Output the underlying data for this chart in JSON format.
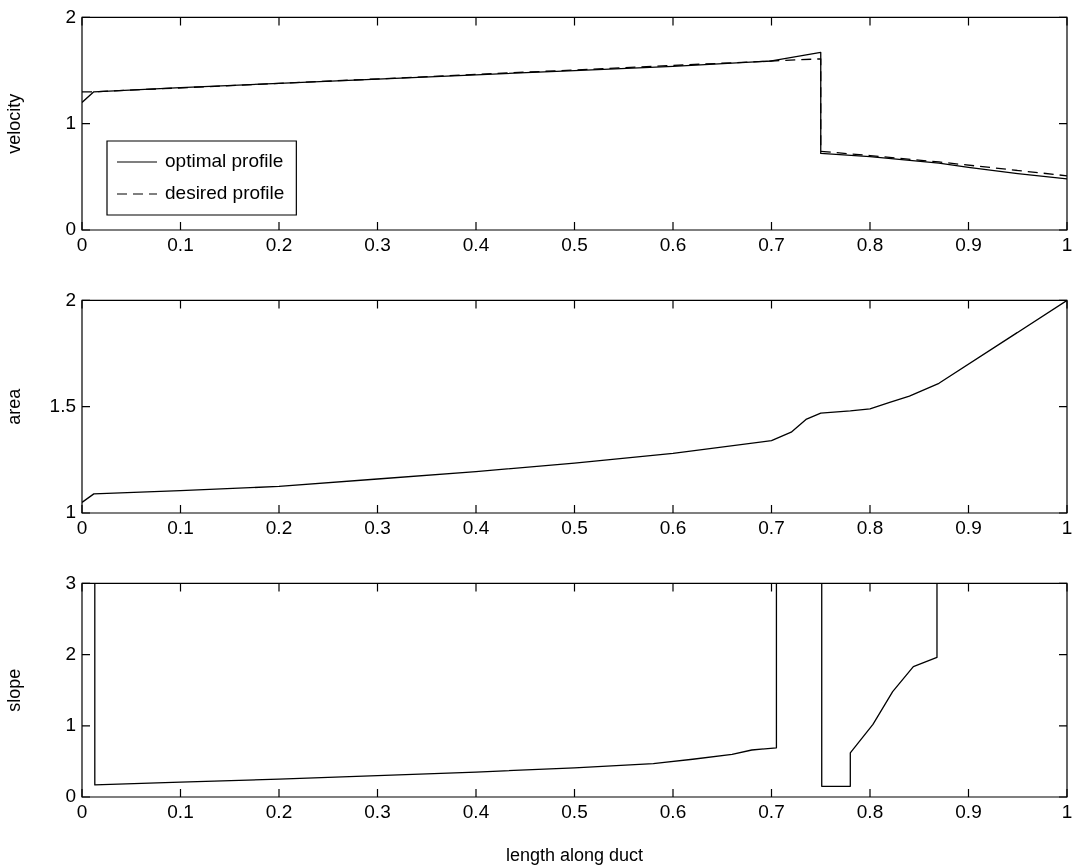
{
  "chart_data": [
    {
      "type": "line",
      "ylabel": "velocity",
      "xlim": [
        0,
        1
      ],
      "xticks": [
        0,
        0.1,
        0.2,
        0.3,
        0.4,
        0.5,
        0.6,
        0.7,
        0.8,
        0.9,
        1
      ],
      "ylim": [
        0,
        2
      ],
      "yticks": [
        0,
        1,
        2
      ],
      "grid": false,
      "legend": "bottom left",
      "marker": "none",
      "series": [
        {
          "name": "optimal profile",
          "color": "#000000",
          "line_style": "solid",
          "x": [
            0,
            0.012,
            0.1,
            0.2,
            0.3,
            0.4,
            0.5,
            0.6,
            0.7,
            0.75,
            0.75,
            0.8,
            0.87,
            0.9,
            0.95,
            1
          ],
          "values": [
            1.2,
            1.3,
            1.34,
            1.38,
            1.42,
            1.46,
            1.5,
            1.54,
            1.59,
            1.67,
            0.72,
            0.69,
            0.63,
            0.59,
            0.53,
            0.48
          ]
        },
        {
          "name": "desired profile",
          "color": "#000000",
          "line_style": "dashed",
          "x": [
            0,
            0.012,
            0.7,
            0.75,
            0.75,
            0.8,
            0.87,
            1
          ],
          "values": [
            1.3,
            1.3,
            1.59,
            1.61,
            0.74,
            0.7,
            0.64,
            0.51
          ]
        }
      ]
    },
    {
      "type": "line",
      "ylabel": "area",
      "xlim": [
        0,
        1
      ],
      "xticks": [
        0,
        0.1,
        0.2,
        0.3,
        0.4,
        0.5,
        0.6,
        0.7,
        0.8,
        0.9,
        1
      ],
      "ylim": [
        1,
        2
      ],
      "yticks": [
        1,
        1.5,
        2
      ],
      "grid": false,
      "marker": "none",
      "series": [
        {
          "color": "#000000",
          "line_style": "solid",
          "x": [
            0,
            0.012,
            0.1,
            0.2,
            0.3,
            0.4,
            0.5,
            0.6,
            0.7,
            0.72,
            0.735,
            0.75,
            0.78,
            0.8,
            0.82,
            0.84,
            0.87,
            1
          ],
          "values": [
            1.05,
            1.09,
            1.105,
            1.125,
            1.16,
            1.195,
            1.235,
            1.28,
            1.34,
            1.38,
            1.44,
            1.47,
            1.48,
            1.49,
            1.52,
            1.55,
            1.61,
            2
          ]
        }
      ]
    },
    {
      "type": "line",
      "ylabel": "slope",
      "xlabel": "length along duct",
      "xlim": [
        0,
        1
      ],
      "xticks": [
        0,
        0.1,
        0.2,
        0.3,
        0.4,
        0.5,
        0.6,
        0.7,
        0.8,
        0.9,
        1
      ],
      "ylim": [
        0,
        3
      ],
      "yticks": [
        0,
        1,
        2,
        3
      ],
      "grid": false,
      "marker": "none",
      "series": [
        {
          "color": "#000000",
          "line_style": "solid",
          "x": [
            0.013,
            0.013,
            0.1,
            0.2,
            0.3,
            0.4,
            0.5,
            0.58,
            0.62,
            0.66,
            0.68,
            0.705,
            0.705,
            0.72,
            0.751,
            0.751,
            0.78,
            0.78,
            0.803,
            0.823,
            0.844,
            0.868,
            0.868
          ],
          "values": [
            3,
            0.17,
            0.21,
            0.25,
            0.3,
            0.35,
            0.41,
            0.47,
            0.53,
            0.6,
            0.66,
            0.69,
            3,
            null,
            3,
            0.15,
            0.15,
            0.62,
            1.02,
            1.48,
            1.83,
            1.96,
            3
          ]
        }
      ]
    }
  ]
}
